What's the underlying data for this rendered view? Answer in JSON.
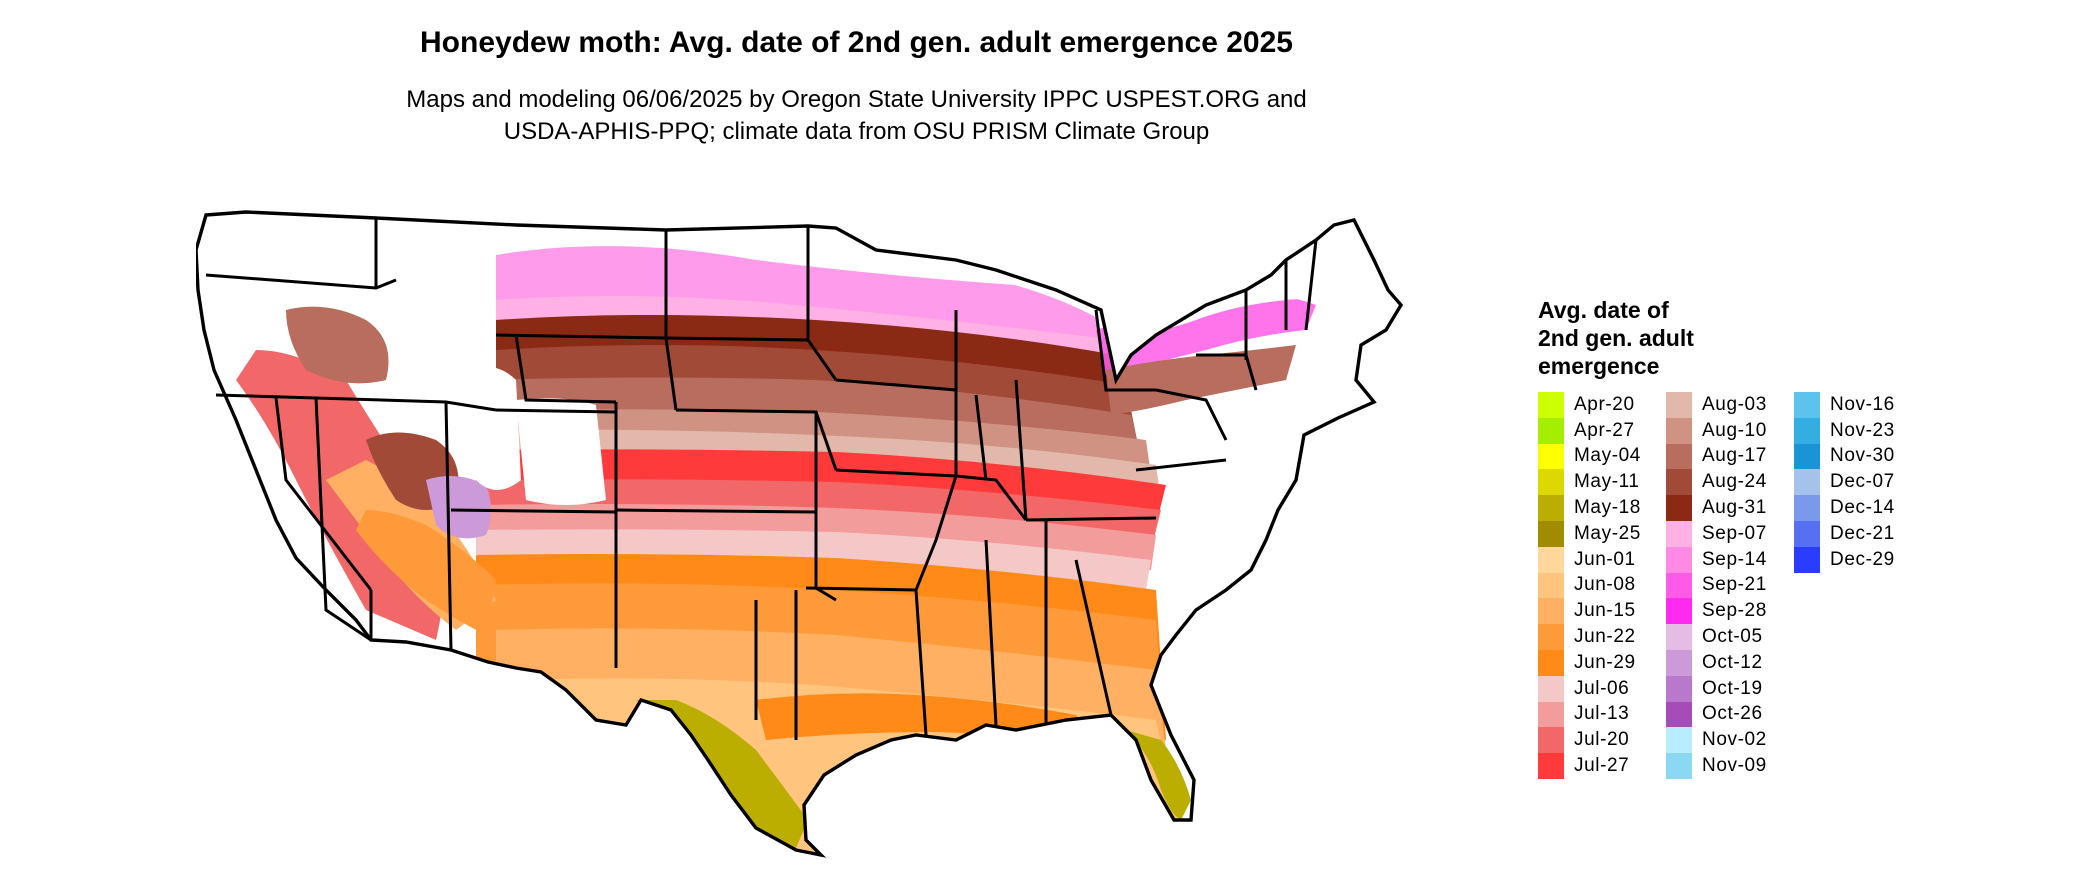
{
  "title": "Honeydew moth: Avg. date of 2nd gen. adult emergence 2025",
  "subtitle_line1": "Maps and modeling 06/06/2025 by Oregon State University IPPC USPEST.ORG and",
  "subtitle_line2": "USDA-APHIS-PPQ; climate data from OSU PRISM Climate Group",
  "legend": {
    "title_line1": "Avg. date of",
    "title_line2": "2nd gen. adult",
    "title_line3": "emergence",
    "columns": [
      [
        {
          "label": "Apr-20",
          "color": "#ccff00"
        },
        {
          "label": "Apr-27",
          "color": "#a6ee00"
        },
        {
          "label": "May-04",
          "color": "#ffff00"
        },
        {
          "label": "May-11",
          "color": "#dcd800"
        },
        {
          "label": "May-18",
          "color": "#bcae00"
        },
        {
          "label": "May-25",
          "color": "#a18c00"
        },
        {
          "label": "Jun-01",
          "color": "#ffd79a"
        },
        {
          "label": "Jun-08",
          "color": "#ffc47d"
        },
        {
          "label": "Jun-15",
          "color": "#ffb062"
        },
        {
          "label": "Jun-22",
          "color": "#ff9a3a"
        },
        {
          "label": "Jun-29",
          "color": "#ff8a18"
        },
        {
          "label": "Jul-06",
          "color": "#f5c8c8"
        },
        {
          "label": "Jul-13",
          "color": "#f29c9c"
        },
        {
          "label": "Jul-20",
          "color": "#f26868"
        },
        {
          "label": "Jul-27",
          "color": "#ff3a3a"
        }
      ],
      [
        {
          "label": "Aug-03",
          "color": "#e2b8ab"
        },
        {
          "label": "Aug-10",
          "color": "#cf9283"
        },
        {
          "label": "Aug-17",
          "color": "#b86d5e"
        },
        {
          "label": "Aug-24",
          "color": "#a14a38"
        },
        {
          "label": "Aug-31",
          "color": "#8a2a14"
        },
        {
          "label": "Sep-07",
          "color": "#ffb0e4"
        },
        {
          "label": "Sep-14",
          "color": "#ff8ae6"
        },
        {
          "label": "Sep-21",
          "color": "#ff5ae8"
        },
        {
          "label": "Sep-28",
          "color": "#ff2af0"
        },
        {
          "label": "Oct-05",
          "color": "#e4bce4"
        },
        {
          "label": "Oct-12",
          "color": "#cc9ad8"
        },
        {
          "label": "Oct-19",
          "color": "#b878cc"
        },
        {
          "label": "Oct-26",
          "color": "#a64cb8"
        },
        {
          "label": "Nov-02",
          "color": "#b8ecff"
        },
        {
          "label": "Nov-09",
          "color": "#8ad8f2"
        }
      ],
      [
        {
          "label": "Nov-16",
          "color": "#5cc4ec"
        },
        {
          "label": "Nov-23",
          "color": "#34aee2"
        },
        {
          "label": "Nov-30",
          "color": "#1a94d6"
        },
        {
          "label": "Dec-07",
          "color": "#a4c2ea"
        },
        {
          "label": "Dec-14",
          "color": "#7a98ec"
        },
        {
          "label": "Dec-21",
          "color": "#5670f2"
        },
        {
          "label": "Dec-29",
          "color": "#2a3cff"
        }
      ]
    ]
  }
}
